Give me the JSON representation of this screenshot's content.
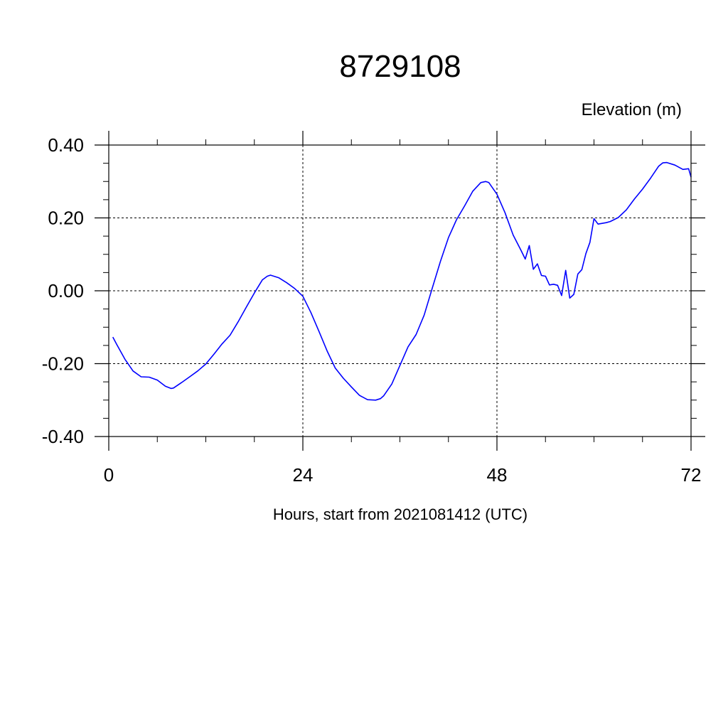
{
  "chart_data": {
    "type": "line",
    "title": "8729108",
    "ylabel": "Elevation (m)",
    "xlabel": "Hours, start from 2021081412 (UTC)",
    "xlim": [
      0,
      72
    ],
    "ylim": [
      -0.4,
      0.4
    ],
    "x_ticks": [
      0,
      24,
      48,
      72
    ],
    "x_tick_labels": [
      "0",
      "24",
      "48",
      "72"
    ],
    "y_ticks": [
      0.4,
      0.2,
      0.0,
      -0.2,
      -0.4
    ],
    "y_tick_labels": [
      "0.40",
      "0.20",
      "0.00",
      "-0.20",
      "-0.40"
    ],
    "grid": true,
    "line_color": "#0000ff",
    "series": [
      {
        "x": [
          0.5,
          1,
          2,
          3,
          4,
          5,
          6,
          7,
          7.7,
          8,
          9,
          10,
          11,
          12,
          13,
          14,
          15,
          16,
          17,
          18,
          19,
          19.6,
          20,
          21,
          22,
          23,
          24,
          25,
          26,
          27,
          28,
          29,
          30,
          31,
          32,
          33,
          33.6,
          34,
          35,
          36,
          37,
          38,
          39,
          40,
          41,
          42,
          43,
          44,
          45,
          46,
          46.6,
          47,
          48,
          49,
          50,
          51,
          51.5,
          52,
          52.5,
          53,
          53.5,
          54,
          54.5,
          55,
          55.5,
          56,
          56.5,
          57,
          57.5,
          58,
          58.5,
          59,
          59.5,
          60,
          60.5,
          61,
          61.5,
          62,
          63,
          64,
          65,
          66,
          67,
          68,
          68.5,
          69,
          70,
          71,
          71.7,
          72
        ],
        "y": [
          -0.127,
          -0.148,
          -0.188,
          -0.22,
          -0.236,
          -0.237,
          -0.245,
          -0.262,
          -0.268,
          -0.267,
          -0.252,
          -0.236,
          -0.22,
          -0.201,
          -0.174,
          -0.146,
          -0.122,
          -0.085,
          -0.045,
          -0.006,
          0.03,
          0.04,
          0.043,
          0.036,
          0.022,
          0.006,
          -0.015,
          -0.06,
          -0.112,
          -0.165,
          -0.212,
          -0.24,
          -0.264,
          -0.287,
          -0.299,
          -0.3,
          -0.296,
          -0.288,
          -0.256,
          -0.205,
          -0.154,
          -0.12,
          -0.067,
          0.007,
          0.08,
          0.146,
          0.195,
          0.233,
          0.273,
          0.297,
          0.3,
          0.297,
          0.265,
          0.214,
          0.153,
          0.11,
          0.087,
          0.124,
          0.059,
          0.074,
          0.042,
          0.04,
          0.016,
          0.018,
          0.015,
          -0.013,
          0.056,
          -0.02,
          -0.01,
          0.046,
          0.058,
          0.102,
          0.133,
          0.198,
          0.183,
          0.185,
          0.187,
          0.19,
          0.201,
          0.222,
          0.252,
          0.279,
          0.309,
          0.342,
          0.351,
          0.352,
          0.345,
          0.333,
          0.335,
          0.312
        ]
      }
    ]
  }
}
